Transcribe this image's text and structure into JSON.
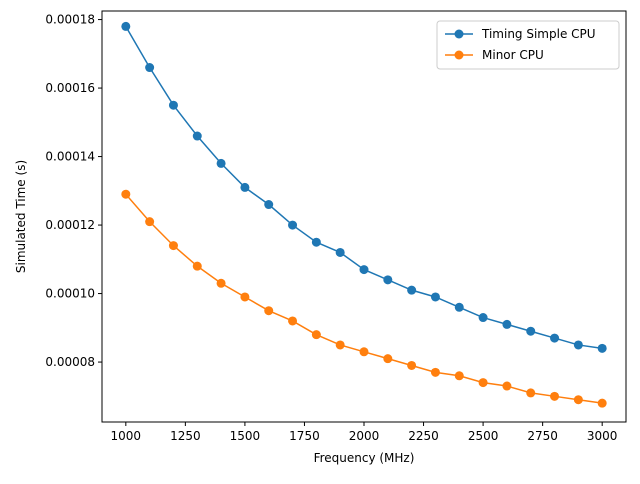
{
  "chart_data": {
    "type": "line",
    "title": "",
    "xlabel": "Frequency (MHz)",
    "ylabel": "Simulated Time (s)",
    "x": [
      1000,
      1100,
      1200,
      1300,
      1400,
      1500,
      1600,
      1700,
      1800,
      1900,
      2000,
      2100,
      2200,
      2300,
      2400,
      2500,
      2600,
      2700,
      2800,
      2900,
      3000
    ],
    "xlim": [
      900,
      3100
    ],
    "ylim": [
      6.25e-05,
      0.0001825
    ],
    "xticks": [
      1000,
      1250,
      1500,
      1750,
      2000,
      2250,
      2500,
      2750,
      3000
    ],
    "xtick_labels": [
      "1000",
      "1250",
      "1500",
      "1750",
      "2000",
      "2250",
      "2500",
      "2750",
      "3000"
    ],
    "yticks": [
      8e-05,
      0.0001,
      0.00012,
      0.00014,
      0.00016,
      0.00018
    ],
    "ytick_labels": [
      "0.00008",
      "0.00010",
      "0.00012",
      "0.00014",
      "0.00016",
      "0.00018"
    ],
    "grid": false,
    "legend_position": "top-right",
    "series": [
      {
        "name": "Timing Simple CPU",
        "color": "#1f77b4",
        "values": [
          0.000178,
          0.000166,
          0.000155,
          0.000146,
          0.000138,
          0.000131,
          0.000126,
          0.00012,
          0.000115,
          0.000112,
          0.000107,
          0.000104,
          0.000101,
          9.9e-05,
          9.6e-05,
          9.3e-05,
          9.1e-05,
          8.9e-05,
          8.7e-05,
          8.5e-05,
          8.4e-05
        ]
      },
      {
        "name": "Minor CPU",
        "color": "#ff7f0e",
        "values": [
          0.000129,
          0.000121,
          0.000114,
          0.000108,
          0.000103,
          9.9e-05,
          9.5e-05,
          9.2e-05,
          8.8e-05,
          8.5e-05,
          8.3e-05,
          8.1e-05,
          7.9e-05,
          7.7e-05,
          7.6e-05,
          7.4e-05,
          7.3e-05,
          7.1e-05,
          7e-05,
          6.9e-05,
          6.8e-05
        ]
      }
    ]
  }
}
